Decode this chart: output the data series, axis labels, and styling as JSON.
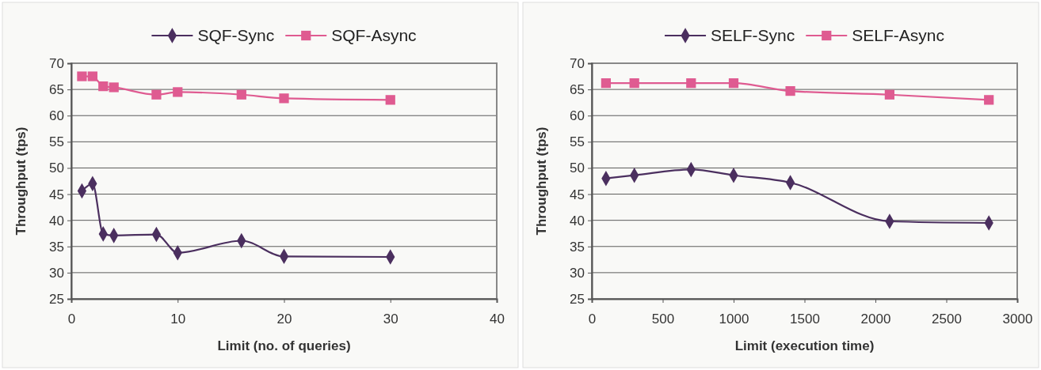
{
  "chart_data": [
    {
      "type": "line",
      "xlabel": "Limit (no. of queries)",
      "ylabel": "Throughput (tps)",
      "xlim": [
        0,
        40
      ],
      "xticks": [
        0,
        10,
        20,
        30,
        40
      ],
      "ylim": [
        25,
        70
      ],
      "yticks": [
        25,
        30,
        35,
        40,
        45,
        50,
        55,
        60,
        65,
        70
      ],
      "grid": "y",
      "legend": "top",
      "x": [
        1,
        2,
        3,
        4,
        8,
        10,
        16,
        20,
        30
      ],
      "series": [
        {
          "name": "SQF-Sync",
          "color": "#4b2f5f",
          "marker": "diamond",
          "values": [
            45.6,
            47,
            37.4,
            37.1,
            37.3,
            33.8,
            36.1,
            33.1,
            33
          ]
        },
        {
          "name": "SQF-Async",
          "color": "#df5b91",
          "marker": "square",
          "values": [
            67.5,
            67.5,
            65.6,
            65.4,
            64,
            64.5,
            64,
            63.3,
            63
          ]
        }
      ]
    },
    {
      "type": "line",
      "xlabel": "Limit (execution time)",
      "ylabel": "Throughput (tps)",
      "xlim": [
        0,
        3000
      ],
      "xticks": [
        0,
        500,
        1000,
        1500,
        2000,
        2500,
        3000
      ],
      "ylim": [
        25,
        70
      ],
      "yticks": [
        25,
        30,
        35,
        40,
        45,
        50,
        55,
        60,
        65,
        70
      ],
      "grid": "y",
      "legend": "top",
      "x": [
        100,
        300,
        700,
        1000,
        1400,
        2100,
        2800
      ],
      "series": [
        {
          "name": "SELF-Sync",
          "color": "#4b2f5f",
          "marker": "diamond",
          "values": [
            48,
            48.6,
            49.7,
            48.6,
            47.2,
            39.8,
            39.5
          ]
        },
        {
          "name": "SELF-Async",
          "color": "#df5b91",
          "marker": "square",
          "values": [
            66.2,
            66.2,
            66.2,
            66.2,
            64.7,
            64,
            63
          ]
        }
      ]
    }
  ]
}
